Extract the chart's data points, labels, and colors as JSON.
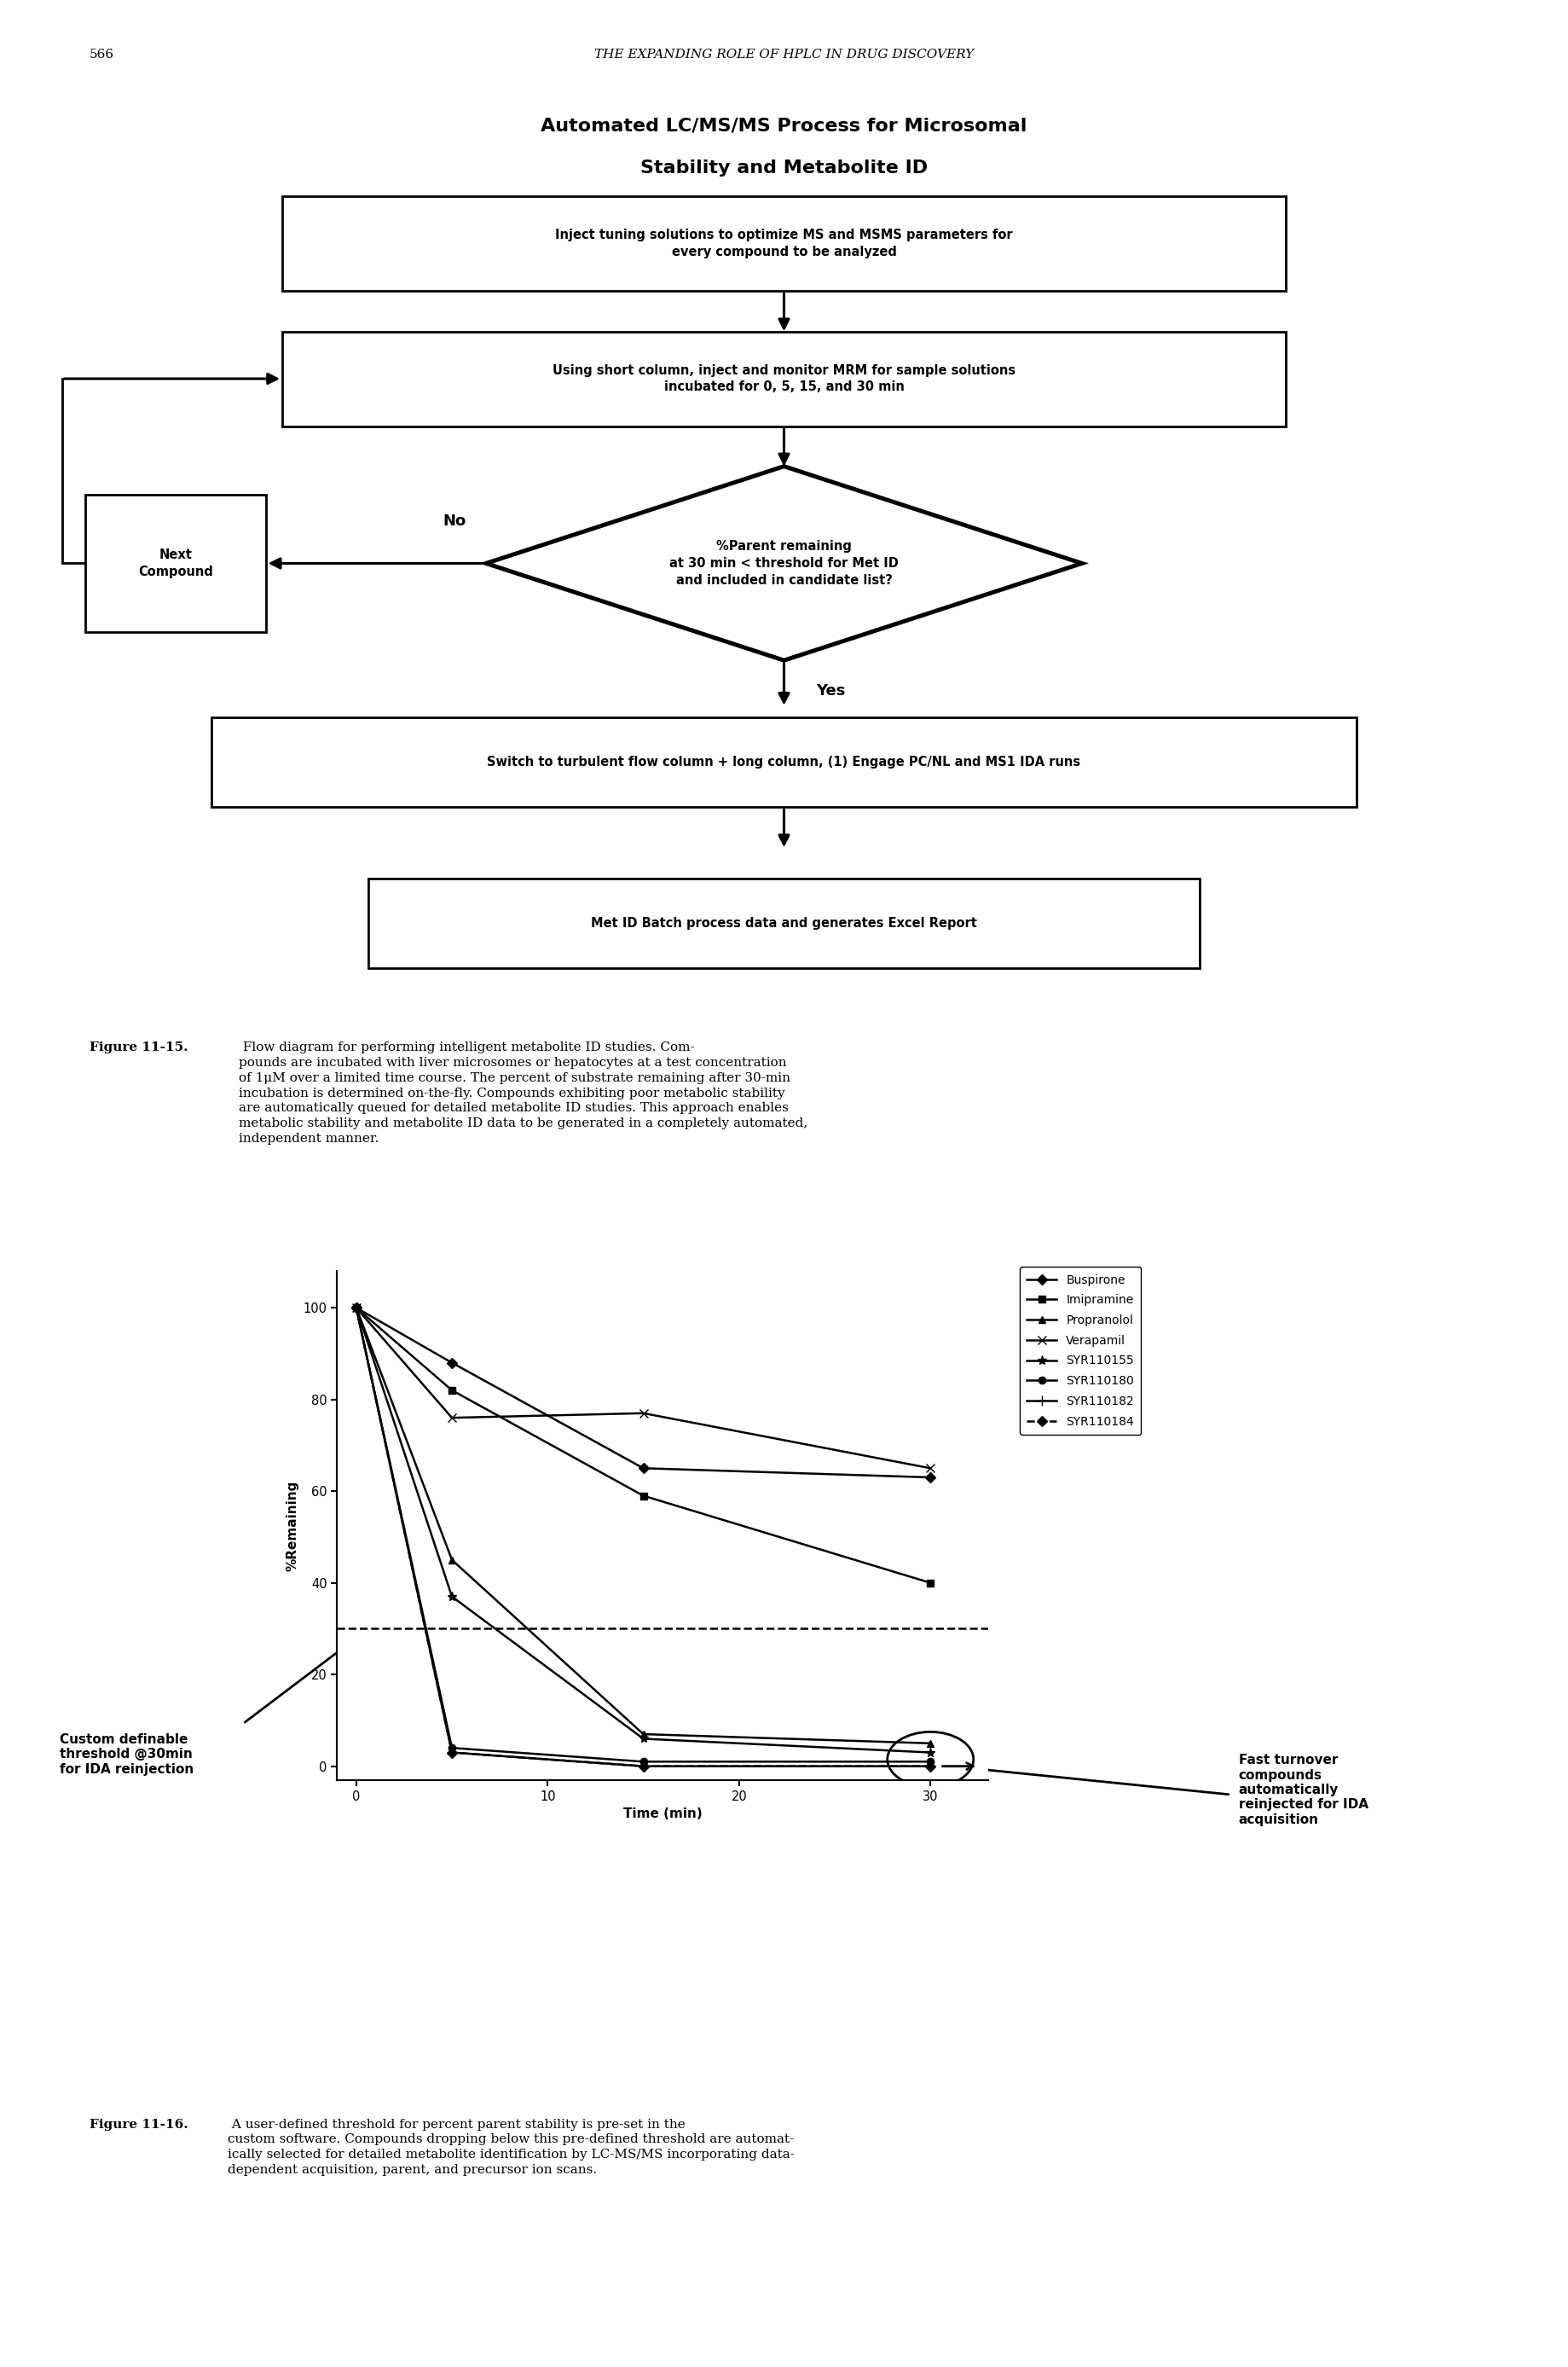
{
  "page_number": "566",
  "header_text": "THE EXPANDING ROLE OF HPLC IN DRUG DISCOVERY",
  "fc_title_line1": "Automated LC/MS/MS Process for Microsomal",
  "fc_title_line2": "Stability and Metabolite ID",
  "box1_text": "Inject tuning solutions to optimize MS and MSMS parameters for\nevery compound to be analyzed",
  "box2_text": "Using short column, inject and monitor MRM for sample solutions\nincubated for 0, 5, 15, and 30 min",
  "diamond_text": "%Parent remaining\nat 30 min < threshold for Met ID\nand included in candidate list?",
  "next_compound_text": "Next\nCompound",
  "no_label": "No",
  "yes_label": "Yes",
  "box3_text": "Switch to turbulent flow column + long column, (1) Engage PC/NL and MS1 IDA runs",
  "box4_text": "Met ID Batch process data and generates Excel Report",
  "caption1515_bold": "Figure 11-15.",
  "caption1515_normal": " Flow diagram for performing intelligent metabolite ID studies. Compounds are incubated with liver microsomes or hepatocytes at a test concentration of 1μM over a limited time course. The percent of substrate remaining after 30-min incubation is determined on-the-fly. Compounds exhibiting poor metabolic stability are automatically queued for detailed metabolite ID studies. This approach enables metabolic stability and metabolite ID data to be generated in a completely automated, independent manner.",
  "time_points": [
    0,
    5,
    15,
    30
  ],
  "series_data": {
    "Buspirone": [
      100,
      88,
      65,
      63
    ],
    "Imipramine": [
      100,
      82,
      59,
      40
    ],
    "Propranolol": [
      100,
      45,
      7,
      5
    ],
    "Verapamil": [
      100,
      76,
      77,
      65
    ],
    "SYR110155": [
      100,
      37,
      6,
      3
    ],
    "SYR110180": [
      100,
      4,
      1,
      1
    ],
    "SYR110182": [
      100,
      3,
      0,
      0
    ],
    "SYR110184": [
      100,
      3,
      0,
      0
    ]
  },
  "markers": [
    "D",
    "s",
    "^",
    "x",
    "*",
    "o",
    "+",
    "D"
  ],
  "linestyles": [
    "-",
    "-",
    "-",
    "-",
    "-",
    "-",
    "-",
    "--"
  ],
  "threshold": 30,
  "xlabel": "Time (min)",
  "ylabel": "%Remaining",
  "custom_label": "Custom definable\nthreshold @30min\nfor IDA reinjection",
  "fast_label": "Fast turnover\ncompounds\nautomatically\nreinjected for IDA\nacquisition",
  "caption1116_bold": "Figure 11-16.",
  "caption1116_normal": " A user-defined threshold for percent parent stability is pre-set in the custom software. Compounds dropping below this pre-defined threshold are automatically selected for detailed metabolite identification by LC-MS/MS incorporating data-dependent acquisition, parent, and precursor ion scans."
}
